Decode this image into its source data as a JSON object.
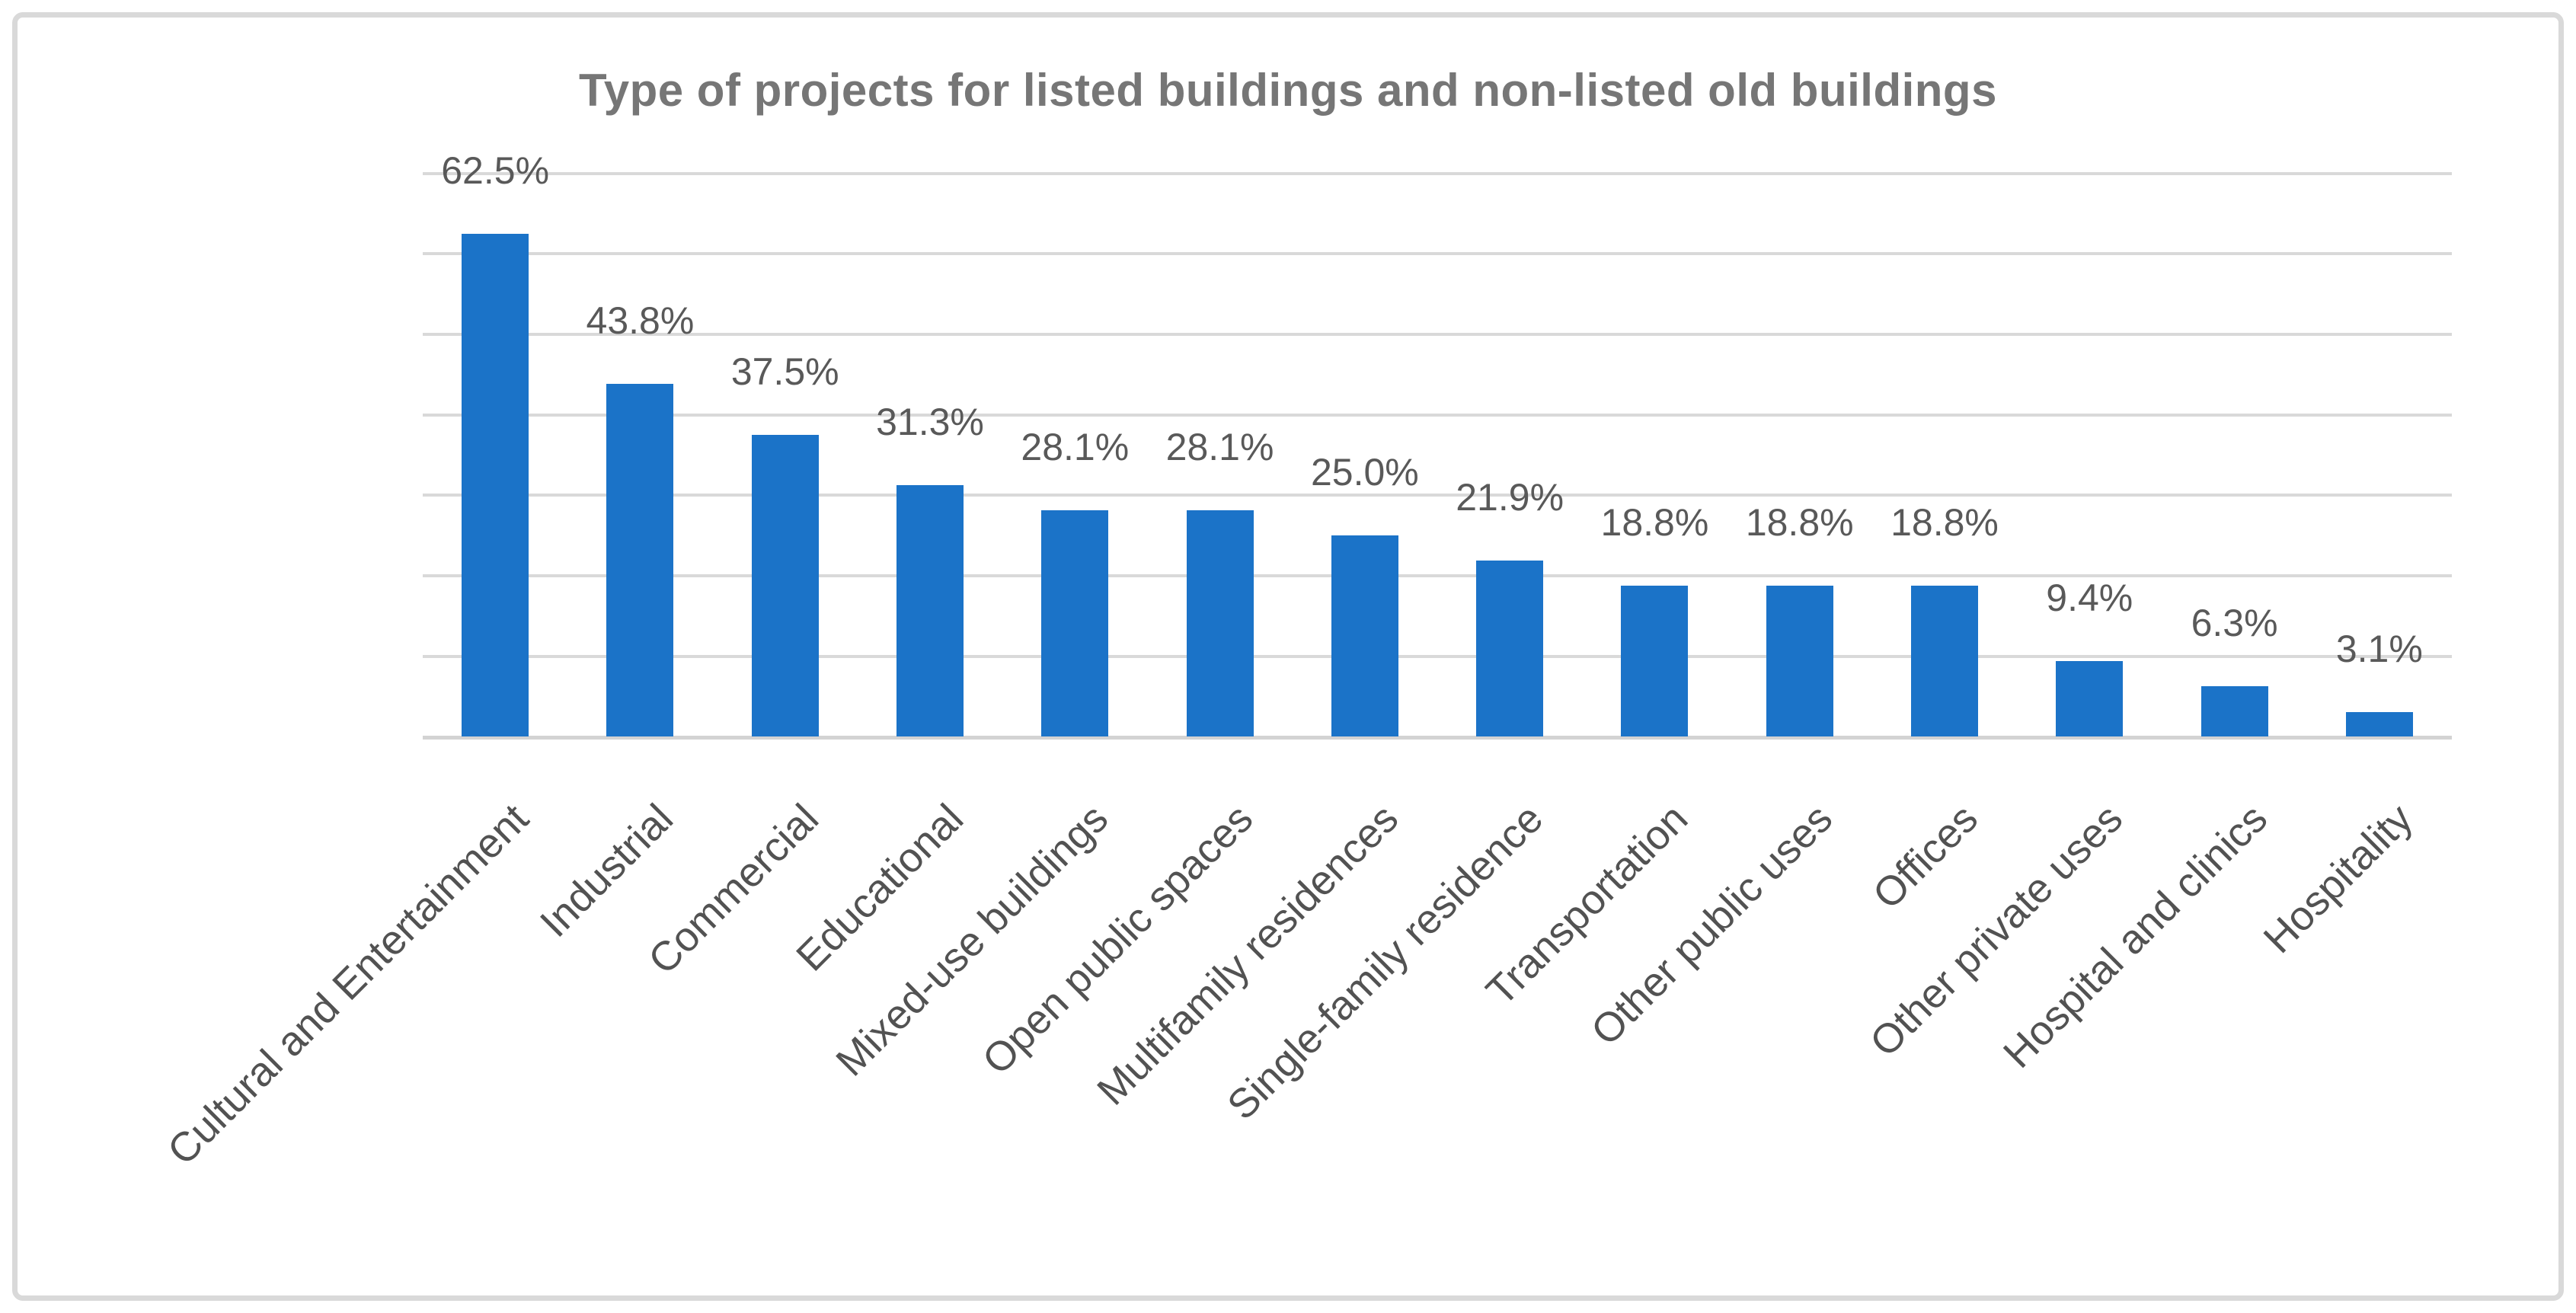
{
  "figure": {
    "title": "Type of projects for listed buildings and non-listed old buildings"
  },
  "colors": {
    "background": "#FFFFFF",
    "frame_border": "#D9D9D9",
    "bar": "#1B73C8",
    "gridline": "#D9D9D9",
    "axis_line": "#D3D3D3",
    "title_text": "#767676",
    "data_label_text": "#595959",
    "category_label_text": "#525252"
  },
  "chart_data": {
    "type": "bar",
    "title": "Type of projects for listed buildings and non-listed old buildings",
    "categories": [
      "Cultural and Entertainment",
      "Industrial",
      "Commercial",
      "Educational",
      "Mixed-use buildings",
      "Open public spaces",
      "Multifamily residences",
      "Single-family residence",
      "Transportation",
      "Other public uses",
      "Offices",
      "Other private uses",
      "Hospital and clinics",
      "Hospitality"
    ],
    "values": [
      62.5,
      43.8,
      37.5,
      31.3,
      28.1,
      28.1,
      25.0,
      21.9,
      18.8,
      18.8,
      18.8,
      9.4,
      6.3,
      3.1
    ],
    "data_labels": [
      "62.5%",
      "43.8%",
      "37.5%",
      "31.3%",
      "28.1%",
      "28.1%",
      "25.0%",
      "21.9%",
      "18.8%",
      "18.8%",
      "18.8%",
      "9.4%",
      "6.3%",
      "3.1%"
    ],
    "xlabel": "",
    "ylabel": "",
    "ylim": [
      0,
      70
    ],
    "y_gridline_step_percent": 10,
    "y_axis_tick_labels_visible": false,
    "grid": "horizontal only",
    "legend": "none",
    "category_label_rotation_deg": 45,
    "data_label_position": "above bar"
  }
}
